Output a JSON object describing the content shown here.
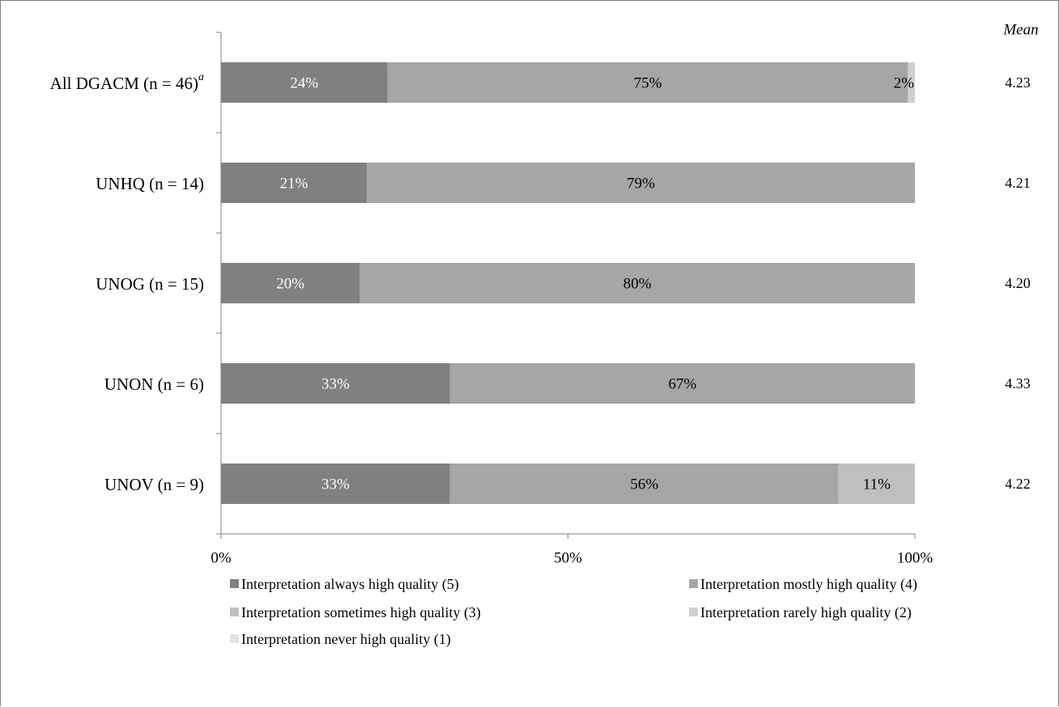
{
  "chart_data": {
    "type": "bar",
    "orientation": "horizontal",
    "stacked": true,
    "categories": [
      "All DGACM (n = 46)",
      "UNHQ (n = 14)",
      "UNOG (n = 15)",
      "UNON (n = 6)",
      "UNOV (n = 9)"
    ],
    "category_superscripts": [
      "a",
      "",
      "",
      "",
      ""
    ],
    "series": [
      {
        "name": "Interpretation always high quality (5)",
        "values": [
          24,
          21,
          20,
          33,
          33
        ],
        "labels": [
          "24%",
          "21%",
          "20%",
          "33%",
          "33%"
        ],
        "color": "#808080",
        "label_color": "#ffffff"
      },
      {
        "name": "Interpretation mostly high quality (4)",
        "values": [
          75,
          79,
          80,
          67,
          56
        ],
        "labels": [
          "75%",
          "79%",
          "80%",
          "67%",
          "56%"
        ],
        "color": "#a6a6a6",
        "label_color": "#000000"
      },
      {
        "name": "Interpretation sometimes high quality (3)",
        "values": [
          0,
          0,
          0,
          0,
          11
        ],
        "labels": [
          "",
          "",
          "",
          "",
          "11%"
        ],
        "color": "#bfbfbf",
        "label_color": "#000000"
      },
      {
        "name": "Interpretation rarely high quality (2)",
        "values": [
          2,
          0,
          0,
          0,
          0
        ],
        "labels": [
          "2%",
          "",
          "",
          "",
          ""
        ],
        "color": "#d0d0d0",
        "label_color": "#000000"
      },
      {
        "name": "Interpretation never high quality (1)",
        "values": [
          0,
          0,
          0,
          0,
          0
        ],
        "labels": [
          "",
          "",
          "",
          "",
          ""
        ],
        "color": "#e3e3e3",
        "label_color": "#000000"
      }
    ],
    "mean_header": "Mean",
    "means": [
      "4.23",
      "4.21",
      "4.20",
      "4.33",
      "4.22"
    ],
    "xticks": [
      0,
      50,
      100
    ],
    "xtick_labels": [
      "0%",
      "50%",
      "100%"
    ],
    "xlim": [
      0,
      100
    ],
    "grid": false,
    "legend_position": "bottom"
  }
}
